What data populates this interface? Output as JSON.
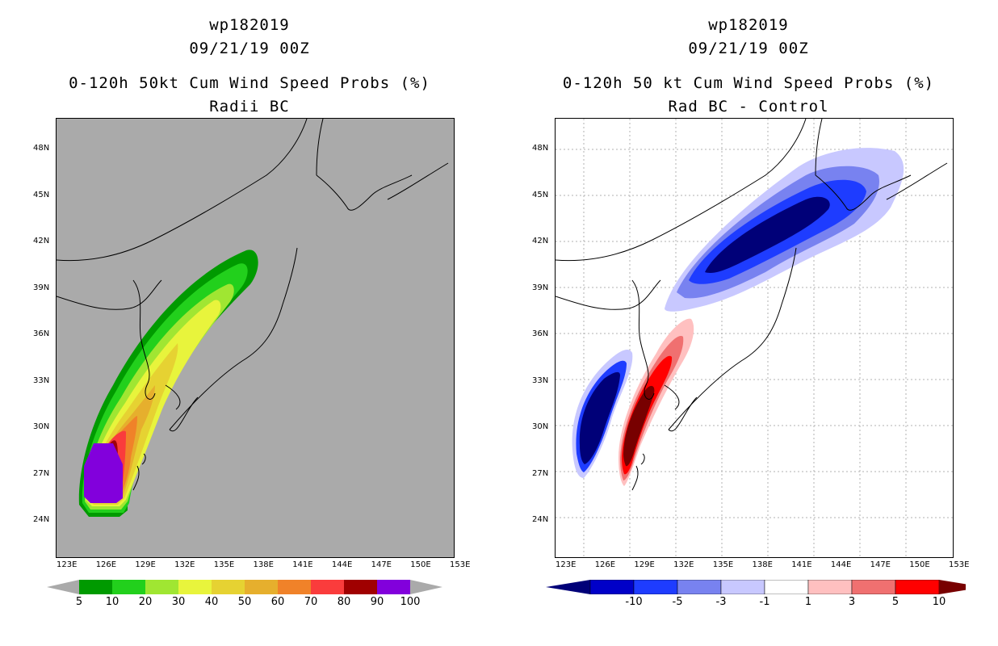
{
  "left": {
    "title_line1": "wp182019",
    "title_line2": "09/21/19 00Z",
    "title_line3": "0-120h 50kt Cum Wind Speed Probs (%)",
    "title_line4": "Radii BC",
    "lat_labels": [
      "48N",
      "45N",
      "42N",
      "39N",
      "36N",
      "33N",
      "30N",
      "27N",
      "24N"
    ],
    "lon_labels": [
      "123E",
      "126E",
      "129E",
      "132E",
      "135E",
      "138E",
      "141E",
      "144E",
      "147E",
      "150E",
      "153E"
    ],
    "colorbar": {
      "labels": [
        "5",
        "10",
        "20",
        "30",
        "40",
        "50",
        "60",
        "70",
        "80",
        "90",
        "100"
      ],
      "colors": [
        "#009a00",
        "#22d01c",
        "#a0e632",
        "#e8f43c",
        "#e6d232",
        "#e6af2d",
        "#f08229",
        "#fa3c3c",
        "#a00000",
        "#8200dc"
      ]
    }
  },
  "right": {
    "title_line1": "wp182019",
    "title_line2": "09/21/19 00Z",
    "title_line3": "0-120h 50 kt Cum Wind Speed Probs (%)",
    "title_line4": "Rad BC - Control",
    "lat_labels": [
      "48N",
      "45N",
      "42N",
      "39N",
      "36N",
      "33N",
      "30N",
      "27N",
      "24N"
    ],
    "lon_labels": [
      "123E",
      "126E",
      "129E",
      "132E",
      "135E",
      "138E",
      "141E",
      "144E",
      "147E",
      "150E",
      "153E"
    ],
    "colorbar": {
      "labels": [
        "-10",
        "-5",
        "-3",
        "-1",
        "1",
        "3",
        "5",
        "10"
      ],
      "colors": [
        "#0000c8",
        "#1e3cff",
        "#7882f0",
        "#c8c8ff",
        "#ffffff",
        "#ffc0c0",
        "#f07070",
        "#ff0000"
      ],
      "end_low": "#000078",
      "end_high": "#780000"
    }
  }
}
